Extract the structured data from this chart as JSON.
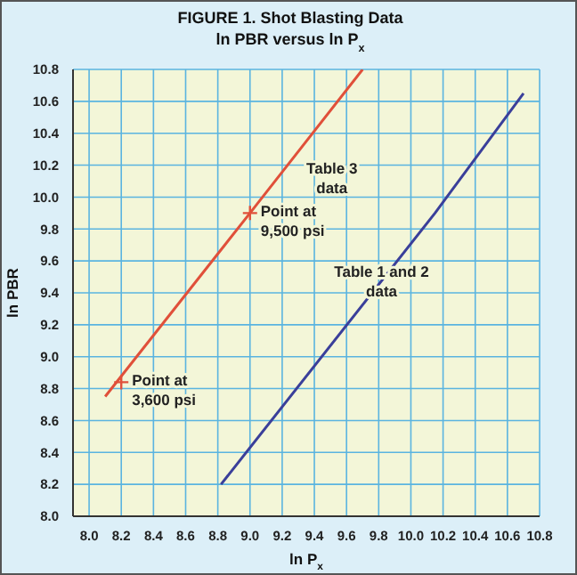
{
  "chart_data": {
    "type": "line",
    "title": "FIGURE 1.  Shot Blasting Data",
    "subtitle": "ln PBR versus ln P$_{x}$",
    "xlabel": "ln P$_{x}$",
    "ylabel": "ln PBR",
    "xlim": [
      7.9,
      10.8
    ],
    "xticks": [
      {
        "value": 8,
        "label": "8.0"
      },
      8.2,
      8.4,
      8.6,
      8.8,
      {
        "value": 9,
        "label": "9.0"
      },
      9.2,
      9.4,
      9.6,
      9.8,
      {
        "value": 10,
        "label": "10.0"
      },
      10.2,
      10.4,
      10.6,
      10.8
    ],
    "ylim": [
      8.0,
      10.8
    ],
    "yticks": [
      {
        "value": 8,
        "label": "8.0"
      },
      8.2,
      8.4,
      8.6,
      8.8,
      {
        "value": 9,
        "label": "9.0"
      },
      9.2,
      9.4,
      9.6,
      9.8,
      {
        "value": 10,
        "label": "10.0"
      },
      10.2,
      10.4,
      10.6,
      10.8
    ],
    "grid": true,
    "legend": false,
    "marker": "none",
    "series": [
      {
        "name": "Table 3 data",
        "color": "#e0503a",
        "x": [
          8.1,
          9.0,
          9.7
        ],
        "values": [
          8.75,
          9.9,
          10.8
        ]
      },
      {
        "name": "Table 1 and 2 data",
        "color": "#3a3f9a",
        "x": [
          8.82,
          10.15,
          10.7
        ],
        "values": [
          8.2,
          9.9,
          10.65
        ]
      },
      {
        "type": "scatter",
        "marker": "cross",
        "color": "#e0503a",
        "x": [
          8.2,
          9.0
        ],
        "values": [
          8.84,
          9.9
        ]
      }
    ],
    "annotations": [
      {
        "text": "Point at 3,600 psi",
        "x": 8.2,
        "y": 8.84
      },
      {
        "text": "Point at 9,500 psi",
        "x": 9.0,
        "y": 9.9
      }
    ]
  }
}
